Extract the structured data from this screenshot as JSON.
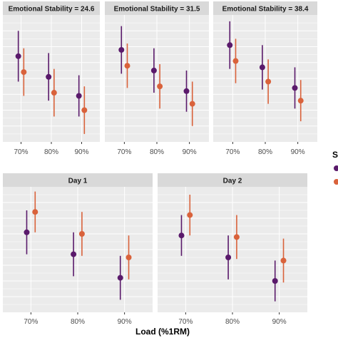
{
  "colors": {
    "series1": "#5a1a6b",
    "series2": "#d9623b",
    "panel_bg": "#ebebeb",
    "strip_bg": "#d9d9d9",
    "grid": "#ffffff"
  },
  "chart_data": {
    "type": "scatter",
    "variant": "point-range facets",
    "x_axis_title": "Load (%1RM)",
    "categories": [
      "70%",
      "80%",
      "90%"
    ],
    "legend_title_fragment": "S",
    "grid": true,
    "facets_top": [
      {
        "strip": "Emotional Stability = 24.6",
        "series": [
          {
            "points": [
              {
                "x": "70%",
                "y": 54,
                "lo": 38,
                "hi": 70
              },
              {
                "x": "80%",
                "y": 41,
                "lo": 26,
                "hi": 56
              },
              {
                "x": "90%",
                "y": 29,
                "lo": 16,
                "hi": 42
              }
            ]
          },
          {
            "points": [
              {
                "x": "70%",
                "y": 44,
                "lo": 29,
                "hi": 59
              },
              {
                "x": "80%",
                "y": 31,
                "lo": 16,
                "hi": 46
              },
              {
                "x": "90%",
                "y": 20,
                "lo": 5,
                "hi": 35
              }
            ]
          }
        ]
      },
      {
        "strip": "Emotional Stability = 31.5",
        "series": [
          {
            "points": [
              {
                "x": "70%",
                "y": 58,
                "lo": 43,
                "hi": 73
              },
              {
                "x": "80%",
                "y": 45,
                "lo": 31,
                "hi": 59
              },
              {
                "x": "90%",
                "y": 32,
                "lo": 19,
                "hi": 45
              }
            ]
          },
          {
            "points": [
              {
                "x": "70%",
                "y": 48,
                "lo": 34,
                "hi": 62
              },
              {
                "x": "80%",
                "y": 35,
                "lo": 21,
                "hi": 49
              },
              {
                "x": "90%",
                "y": 24,
                "lo": 10,
                "hi": 38
              }
            ]
          }
        ]
      },
      {
        "strip": "Emotional Stability = 38.4",
        "series": [
          {
            "points": [
              {
                "x": "70%",
                "y": 61,
                "lo": 46,
                "hi": 76
              },
              {
                "x": "80%",
                "y": 47,
                "lo": 33,
                "hi": 61
              },
              {
                "x": "90%",
                "y": 34,
                "lo": 21,
                "hi": 47
              }
            ]
          },
          {
            "points": [
              {
                "x": "70%",
                "y": 51,
                "lo": 37,
                "hi": 65
              },
              {
                "x": "80%",
                "y": 38,
                "lo": 24,
                "hi": 52
              },
              {
                "x": "90%",
                "y": 26,
                "lo": 13,
                "hi": 39
              }
            ]
          }
        ]
      }
    ],
    "facets_bottom": [
      {
        "strip": "Day 1",
        "series": [
          {
            "points": [
              {
                "x": "70%",
                "y": 51,
                "lo": 37,
                "hi": 65
              },
              {
                "x": "80%",
                "y": 37,
                "lo": 23,
                "hi": 51
              },
              {
                "x": "90%",
                "y": 22,
                "lo": 8,
                "hi": 36
              }
            ]
          },
          {
            "points": [
              {
                "x": "70%",
                "y": 64,
                "lo": 51,
                "hi": 77
              },
              {
                "x": "80%",
                "y": 50,
                "lo": 36,
                "hi": 64
              },
              {
                "x": "90%",
                "y": 35,
                "lo": 21,
                "hi": 49
              }
            ]
          }
        ]
      },
      {
        "strip": "Day 2",
        "series": [
          {
            "points": [
              {
                "x": "70%",
                "y": 49,
                "lo": 36,
                "hi": 62
              },
              {
                "x": "80%",
                "y": 35,
                "lo": 21,
                "hi": 49
              },
              {
                "x": "90%",
                "y": 20,
                "lo": 7,
                "hi": 33
              }
            ]
          },
          {
            "points": [
              {
                "x": "70%",
                "y": 62,
                "lo": 49,
                "hi": 75
              },
              {
                "x": "80%",
                "y": 48,
                "lo": 34,
                "hi": 62
              },
              {
                "x": "90%",
                "y": 33,
                "lo": 19,
                "hi": 47
              }
            ]
          }
        ]
      }
    ]
  }
}
